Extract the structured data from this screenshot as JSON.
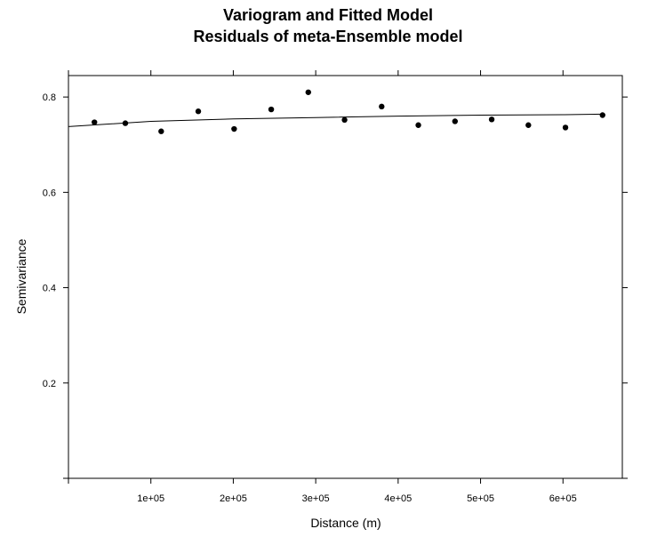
{
  "chart_data": {
    "type": "scatter",
    "title": "Variogram and Fitted Model",
    "subtitle": "Residuals of meta-Ensemble model",
    "xlabel": "Distance (m)",
    "ylabel": "Semivariance",
    "xlim": [
      0,
      672000
    ],
    "ylim": [
      0,
      0.845
    ],
    "x_ticks": [
      {
        "value": 0,
        "label": ""
      },
      {
        "value": 100000,
        "label": "1e+05"
      },
      {
        "value": 200000,
        "label": "2e+05"
      },
      {
        "value": 300000,
        "label": "3e+05"
      },
      {
        "value": 400000,
        "label": "4e+05"
      },
      {
        "value": 500000,
        "label": "5e+05"
      },
      {
        "value": 600000,
        "label": "6e+05"
      }
    ],
    "y_ticks": [
      {
        "value": 0.0,
        "label": ""
      },
      {
        "value": 0.2,
        "label": "0.2"
      },
      {
        "value": 0.4,
        "label": "0.4"
      },
      {
        "value": 0.6,
        "label": "0.6"
      },
      {
        "value": 0.8,
        "label": "0.8"
      }
    ],
    "grid": false,
    "series": [
      {
        "kind": "points",
        "color": "#000000",
        "x": [
          31500,
          69000,
          112500,
          157500,
          201000,
          246000,
          291000,
          335000,
          380000,
          424500,
          469000,
          513500,
          558000,
          603000,
          648000
        ],
        "y": [
          0.747,
          0.745,
          0.728,
          0.77,
          0.733,
          0.774,
          0.81,
          0.752,
          0.78,
          0.741,
          0.749,
          0.753,
          0.741,
          0.736,
          0.762
        ]
      },
      {
        "kind": "fitted-line",
        "color": "#000000",
        "x": [
          0,
          100000,
          200000,
          300000,
          400000,
          500000,
          600000,
          648000
        ],
        "y": [
          0.738,
          0.749,
          0.754,
          0.757,
          0.76,
          0.762,
          0.763,
          0.764
        ]
      }
    ]
  }
}
